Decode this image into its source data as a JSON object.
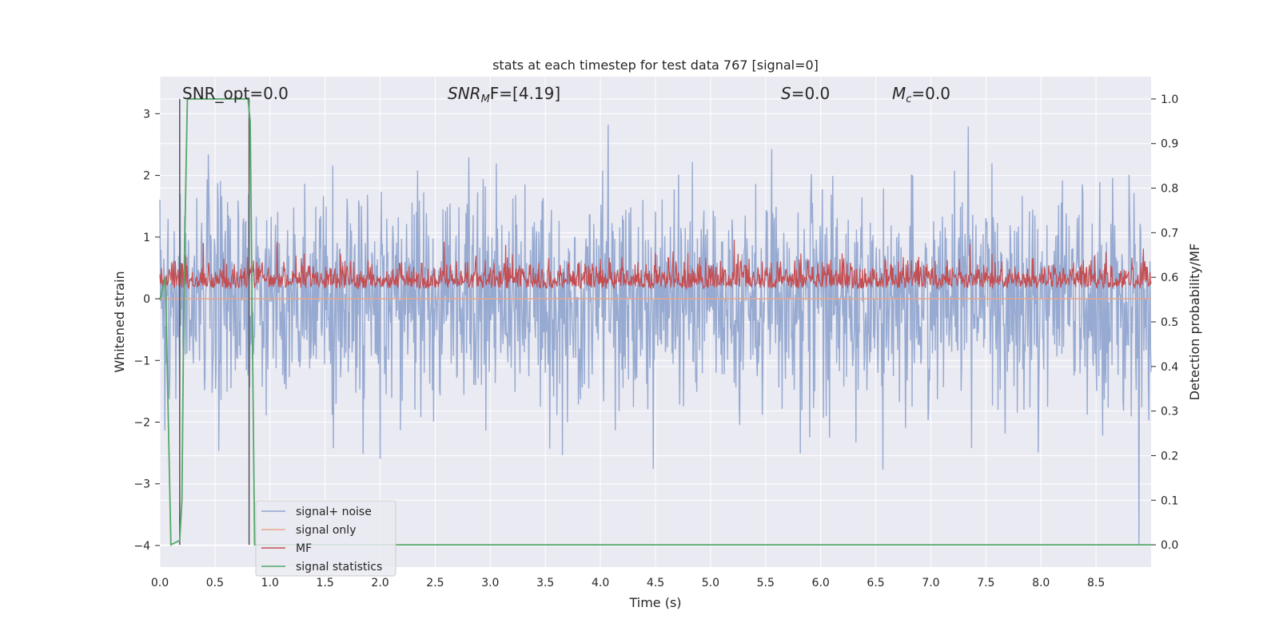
{
  "chart_data": {
    "type": "line",
    "title": "stats at each timestep for test data 767 [signal=0]",
    "xlabel": "Time (s)",
    "ylabel": "Whitened strain",
    "y2label": "Detection probability/MF",
    "xlim": [
      0.0,
      9.0
    ],
    "ylim": [
      -4.35,
      3.6
    ],
    "y2lim": [
      -0.05,
      1.05
    ],
    "x_ticks": [
      "0.0",
      "0.5",
      "1.0",
      "1.5",
      "2.0",
      "2.5",
      "3.0",
      "3.5",
      "4.0",
      "4.5",
      "5.0",
      "5.5",
      "6.0",
      "6.5",
      "7.0",
      "7.5",
      "8.0",
      "8.5"
    ],
    "y_ticks": [
      "3",
      "2",
      "1",
      "0",
      "−1",
      "−2",
      "−3",
      "−4"
    ],
    "y2_ticks": [
      "1.0",
      "0.9",
      "0.8",
      "0.7",
      "0.6",
      "0.5",
      "0.4",
      "0.3",
      "0.2",
      "0.1",
      "0.0"
    ],
    "grid": true,
    "legend_position": "lower-left",
    "annotations": {
      "snr_opt": "SNR_opt=0.0",
      "snr_mf_main": "SNR",
      "snr_mf_sub": "M",
      "snr_mf_rest": "F=[4.19]",
      "s_main": "S",
      "s_rest": "=0.0",
      "mc_main": "M",
      "mc_sub": "c",
      "mc_rest": "=0.0"
    },
    "series": [
      {
        "name": "signal+ noise",
        "color": "#92a6cf",
        "sample_rate_hz": 200,
        "approx_range": [
          -4.0,
          3.3
        ],
        "kind": "noise"
      },
      {
        "name": "signal only",
        "color": "#e8a68b",
        "constant": 0.0
      },
      {
        "name": "MF",
        "color": "#c44e52",
        "axis": "right",
        "approx_range": [
          0.55,
          0.7
        ],
        "kind": "mf"
      },
      {
        "name": "signal statistics",
        "color": "#55a868",
        "axis": "right",
        "x": [
          0.0,
          0.05,
          0.1,
          0.18,
          0.2,
          0.22,
          0.25,
          0.8,
          0.82,
          0.86,
          0.9,
          9.0
        ],
        "y": [
          0.55,
          0.6,
          0.0,
          0.01,
          0.1,
          0.6,
          1.0,
          1.0,
          0.95,
          0.0,
          0.0,
          0.0
        ]
      }
    ],
    "vlines": {
      "x": [
        0.18,
        0.81
      ],
      "color": "#555555",
      "y2_range": [
        0.0,
        1.0
      ]
    }
  }
}
